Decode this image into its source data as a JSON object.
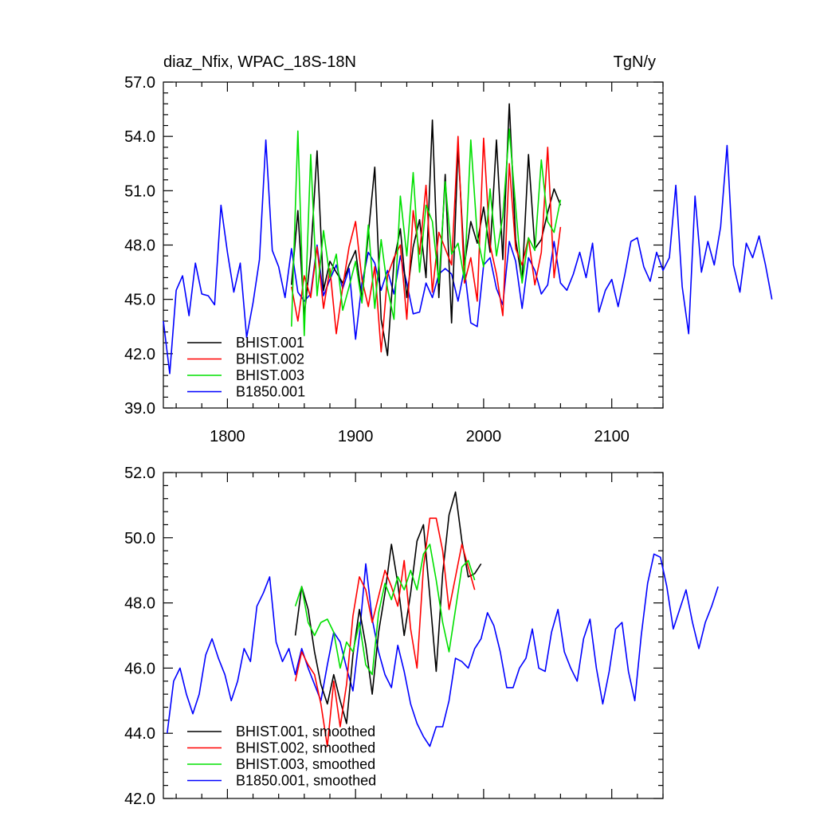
{
  "title_left": "diaz_Nfix, WPAC_18S-18N",
  "title_right": "TgN/y",
  "colors": {
    "BHIST.001": "#000000",
    "BHIST.002": "#ff0000",
    "BHIST.003": "#00e000",
    "B1850.001": "#0000ff"
  },
  "chart_data": [
    {
      "type": "line",
      "title": "diaz_Nfix, WPAC_18S-18N",
      "units": "TgN/y",
      "xlim": [
        1750,
        2140
      ],
      "ylim": [
        39.0,
        57.0
      ],
      "xticks": [
        1800,
        1900,
        2000,
        2100
      ],
      "xtick_labels": [
        "1800",
        "1900",
        "2000",
        "2100"
      ],
      "yticks": [
        39.0,
        42.0,
        45.0,
        48.0,
        51.0,
        54.0,
        57.0
      ],
      "ytick_labels": [
        "39.0",
        "42.0",
        "45.0",
        "48.0",
        "51.0",
        "54.0",
        "57.0"
      ],
      "legend": [
        "BHIST.001",
        "BHIST.002",
        "BHIST.003",
        "B1850.001"
      ],
      "series": [
        {
          "name": "B1850.001",
          "x_start": 1750,
          "x_step": 5,
          "values": [
            43.8,
            40.9,
            45.5,
            46.3,
            44.1,
            47.0,
            45.3,
            45.2,
            44.7,
            50.2,
            47.6,
            45.4,
            47.0,
            42.9,
            44.8,
            47.2,
            53.8,
            47.7,
            46.8,
            45.1,
            47.8,
            45.4,
            44.9,
            45.3,
            48.0,
            45.2,
            46.1,
            46.9,
            45.6,
            46.7,
            42.8,
            45.9,
            47.6,
            47.0,
            45.5,
            46.6,
            45.3,
            47.4,
            45.9,
            44.2,
            44.3,
            45.9,
            45.1,
            46.4,
            46.7,
            46.4,
            44.9,
            46.7,
            43.7,
            43.5,
            46.9,
            47.3,
            45.6,
            44.7,
            48.2,
            47.1,
            44.5,
            47.3,
            46.6,
            45.3,
            45.8,
            48.2,
            45.9,
            45.5,
            46.4,
            47.6,
            46.2,
            48.1,
            44.3,
            45.5,
            46.1,
            44.6,
            46.3,
            48.2,
            48.4,
            46.8,
            46.0,
            47.6,
            46.6,
            47.3,
            51.3,
            45.7,
            43.1,
            50.7,
            46.5,
            48.2,
            46.9,
            49.0,
            53.5,
            46.9,
            45.4,
            48.1,
            47.3,
            48.5,
            46.9,
            45.0
          ]
        },
        {
          "name": "BHIST.001",
          "x_start": 1850,
          "x_step": 5,
          "values": [
            45.8,
            49.9,
            44.1,
            47.4,
            53.2,
            45.5,
            47.1,
            46.5,
            45.9,
            46.9,
            47.7,
            45.0,
            48.6,
            52.3,
            43.9,
            41.9,
            47.1,
            48.9,
            45.1,
            47.9,
            49.4,
            46.2,
            54.9,
            45.1,
            51.9,
            43.7,
            53.4,
            46.9,
            49.3,
            48.1,
            50.1,
            47.6,
            53.8,
            47.2,
            55.8,
            48.3,
            46.0,
            53.0,
            47.8,
            48.3,
            49.8,
            51.1,
            50.2
          ]
        },
        {
          "name": "BHIST.002",
          "x_start": 1850,
          "x_step": 5,
          "values": [
            45.7,
            43.8,
            46.3,
            45.1,
            47.9,
            44.5,
            46.7,
            43.1,
            45.7,
            47.9,
            49.3,
            46.1,
            44.6,
            46.8,
            42.1,
            46.3,
            47.3,
            48.0,
            43.9,
            49.9,
            47.5,
            51.3,
            45.4,
            48.7,
            47.8,
            46.9,
            54.0,
            45.9,
            47.3,
            44.9,
            53.9,
            48.0,
            46.4,
            44.1,
            52.5,
            47.8,
            46.9,
            48.4,
            45.8,
            47.6,
            53.4,
            46.2,
            49.0
          ]
        },
        {
          "name": "BHIST.003",
          "x_start": 1850,
          "x_step": 5,
          "values": [
            43.5,
            54.3,
            43.0,
            53.0,
            45.2,
            48.8,
            46.2,
            47.5,
            44.4,
            45.7,
            47.1,
            44.8,
            49.1,
            44.5,
            48.3,
            45.6,
            43.9,
            50.7,
            47.4,
            52.0,
            46.5,
            50.2,
            49.3,
            45.9,
            51.5,
            47.5,
            48.1,
            46.1,
            53.8,
            48.5,
            46.8,
            51.1,
            47.4,
            49.6,
            54.4,
            50.1,
            45.9,
            48.4,
            47.7,
            52.7,
            49.3,
            48.7,
            50.5
          ]
        }
      ]
    },
    {
      "type": "line",
      "xlim": [
        1750,
        2140
      ],
      "ylim": [
        42.0,
        52.0
      ],
      "xticks": [
        1800,
        1900,
        2000,
        2100
      ],
      "yticks": [
        42.0,
        44.0,
        46.0,
        48.0,
        50.0,
        52.0
      ],
      "ytick_labels": [
        "42.0",
        "44.0",
        "46.0",
        "48.0",
        "50.0",
        "52.0"
      ],
      "legend": [
        "BHIST.001, smoothed",
        "BHIST.002, smoothed",
        "BHIST.003, smoothed",
        "B1850.001, smoothed"
      ],
      "series": [
        {
          "name": "B1850.001, smoothed",
          "x_start": 1753,
          "x_step": 5,
          "values": [
            44.0,
            45.6,
            46.0,
            45.2,
            44.6,
            45.2,
            46.4,
            46.9,
            46.3,
            45.8,
            45.0,
            45.6,
            46.6,
            46.2,
            47.9,
            48.3,
            48.8,
            46.8,
            46.2,
            46.6,
            45.8,
            46.6,
            46.0,
            45.5,
            45.0,
            46.1,
            47.1,
            46.8,
            46.0,
            45.3,
            47.0,
            49.2,
            47.5,
            46.5,
            45.8,
            45.4,
            46.7,
            45.9,
            44.9,
            44.3,
            43.9,
            43.6,
            44.2,
            44.2,
            45.0,
            46.3,
            46.2,
            46.0,
            46.6,
            46.9,
            47.7,
            47.3,
            46.5,
            45.4,
            45.4,
            46.0,
            46.3,
            47.2,
            46.0,
            45.9,
            47.1,
            47.8,
            46.5,
            46.0,
            45.6,
            46.9,
            47.5,
            46.0,
            44.9,
            45.9,
            47.2,
            47.4,
            45.9,
            45.0,
            47.0,
            48.6,
            49.5,
            49.4,
            48.5,
            47.2,
            47.8,
            48.4,
            47.4,
            46.6,
            47.4,
            47.9,
            48.5
          ]
        },
        {
          "name": "BHIST.001, smoothed",
          "x_start": 1853,
          "x_step": 5,
          "values": [
            47.0,
            48.5,
            47.8,
            46.5,
            45.5,
            44.9,
            45.8,
            45.0,
            44.3,
            46.4,
            47.8,
            46.7,
            45.2,
            47.1,
            48.3,
            49.8,
            48.6,
            47.0,
            48.3,
            49.9,
            50.4,
            48.2,
            45.9,
            48.9,
            50.7,
            51.4,
            49.9,
            48.8,
            48.9,
            49.2
          ]
        },
        {
          "name": "BHIST.002, smoothed",
          "x_start": 1853,
          "x_step": 5,
          "values": [
            45.6,
            46.5,
            46.1,
            45.8,
            44.9,
            43.6,
            45.6,
            44.2,
            45.5,
            47.6,
            48.8,
            48.4,
            47.4,
            48.2,
            49.0,
            48.5,
            47.9,
            49.3,
            47.2,
            46.0,
            49.1,
            50.6,
            50.6,
            49.6,
            47.8,
            48.8,
            49.8,
            49.1,
            48.4
          ]
        },
        {
          "name": "BHIST.003, smoothed",
          "x_start": 1853,
          "x_step": 5,
          "values": [
            47.9,
            48.5,
            47.4,
            47.0,
            47.4,
            47.5,
            47.1,
            46.0,
            46.8,
            46.5,
            47.4,
            46.1,
            45.8,
            47.7,
            48.6,
            48.1,
            48.8,
            48.4,
            49.0,
            48.4,
            49.5,
            49.8,
            48.7,
            47.4,
            46.5,
            47.8,
            49.1,
            49.3,
            48.7
          ]
        }
      ]
    }
  ]
}
